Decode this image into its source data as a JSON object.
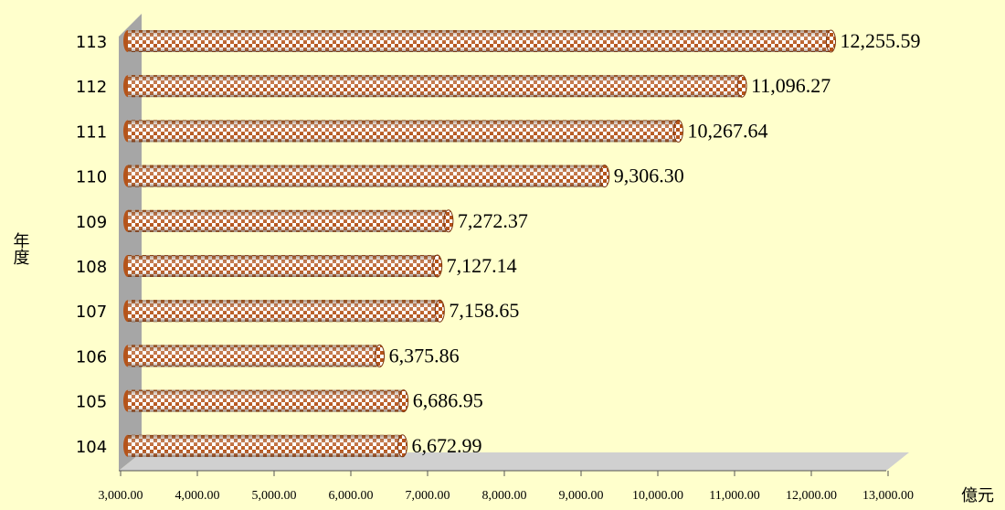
{
  "chart_data": {
    "type": "bar",
    "orientation": "horizontal",
    "categories": [
      "104",
      "105",
      "106",
      "107",
      "108",
      "109",
      "110",
      "111",
      "112",
      "113"
    ],
    "values": [
      6672.99,
      6686.95,
      6375.86,
      7158.65,
      7127.14,
      7272.37,
      9306.3,
      10267.64,
      11096.27,
      12255.59
    ],
    "value_labels": [
      "6,672.99",
      "6,686.95",
      "6,375.86",
      "7,158.65",
      "7,127.14",
      "7,272.37",
      "9,306.30",
      "10,267.64",
      "11,096.27",
      "12,255.59"
    ],
    "color": "#b5541a",
    "y_label": "年度",
    "x_label": "億元",
    "xlim": [
      3000,
      13000
    ],
    "xticks": [
      {
        "value": 3000,
        "label": "3,000.00"
      },
      {
        "value": 4000,
        "label": "4,000.00"
      },
      {
        "value": 5000,
        "label": "5,000.00"
      },
      {
        "value": 6000,
        "label": "6,000.00"
      },
      {
        "value": 7000,
        "label": "7,000.00"
      },
      {
        "value": 8000,
        "label": "8,000.00"
      },
      {
        "value": 9000,
        "label": "9,000.00"
      },
      {
        "value": 10000,
        "label": "10,000.00"
      },
      {
        "value": 11000,
        "label": "11,000.00"
      },
      {
        "value": 12000,
        "label": "12,000.00"
      },
      {
        "value": 13000,
        "label": "13,000.00"
      }
    ],
    "grid": false
  }
}
